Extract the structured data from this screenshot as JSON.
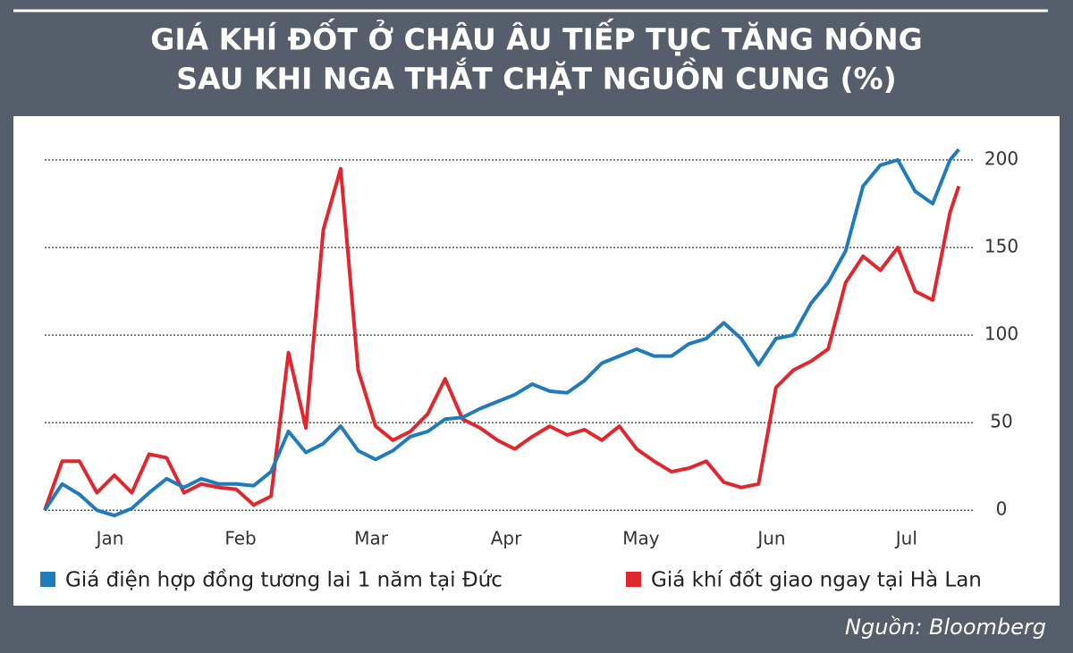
{
  "chart_data": {
    "type": "line",
    "title": [
      "GIÁ KHÍ ĐỐT Ở CHÂU ÂU TIẾP TỤC TĂNG NÓNG",
      "SAU KHI NGA THẮT CHẶT NGUỒN CUNG (%)"
    ],
    "source": "Nguồn: Bloomberg",
    "x": [
      0,
      4,
      8,
      12,
      16,
      20,
      24,
      28,
      32,
      36,
      40,
      44,
      48,
      52,
      56,
      60,
      64,
      68,
      72,
      76,
      80,
      84,
      88,
      92,
      96,
      100,
      104,
      108,
      112,
      116,
      120,
      124,
      128,
      132,
      136,
      140,
      144,
      148,
      152,
      156,
      160,
      164,
      168,
      172,
      176,
      180,
      184,
      188,
      192,
      196,
      200,
      204,
      208,
      210
    ],
    "xlim": [
      0,
      212
    ],
    "xticks": [
      {
        "value": 15,
        "label": "Jan"
      },
      {
        "value": 45,
        "label": "Feb"
      },
      {
        "value": 75,
        "label": "Mar"
      },
      {
        "value": 106,
        "label": "Apr"
      },
      {
        "value": 137,
        "label": "May"
      },
      {
        "value": 167,
        "label": "Jun"
      },
      {
        "value": 198,
        "label": "Jul"
      }
    ],
    "ylim": [
      -5,
      225
    ],
    "yticks": [
      0,
      50,
      100,
      150,
      200
    ],
    "grid": true,
    "series": [
      {
        "name": "Giá điện hợp đồng tương lai 1 năm tại Đức",
        "color": "#1f7bbb",
        "values": [
          0,
          15,
          9,
          0,
          -3,
          1,
          10,
          18,
          13,
          18,
          15,
          15,
          14,
          22,
          45,
          33,
          38,
          48,
          34,
          29,
          34,
          42,
          45,
          52,
          53,
          58,
          62,
          66,
          72,
          68,
          67,
          74,
          84,
          88,
          92,
          88,
          88,
          95,
          98,
          107,
          98,
          83,
          98,
          100,
          118,
          130,
          148,
          185,
          197,
          200,
          182,
          175,
          200,
          206
        ]
      },
      {
        "name": "Giá khí đốt giao ngay tại Hà Lan",
        "color": "#e2262e",
        "values": [
          0,
          28,
          28,
          10,
          20,
          10,
          32,
          30,
          10,
          15,
          13,
          12,
          3,
          8,
          90,
          47,
          160,
          195,
          80,
          48,
          40,
          45,
          55,
          75,
          52,
          47,
          40,
          35,
          42,
          48,
          43,
          46,
          40,
          48,
          35,
          28,
          22,
          24,
          28,
          16,
          13,
          15,
          70,
          80,
          85,
          92,
          130,
          145,
          137,
          150,
          125,
          120,
          170,
          185
        ]
      }
    ]
  }
}
